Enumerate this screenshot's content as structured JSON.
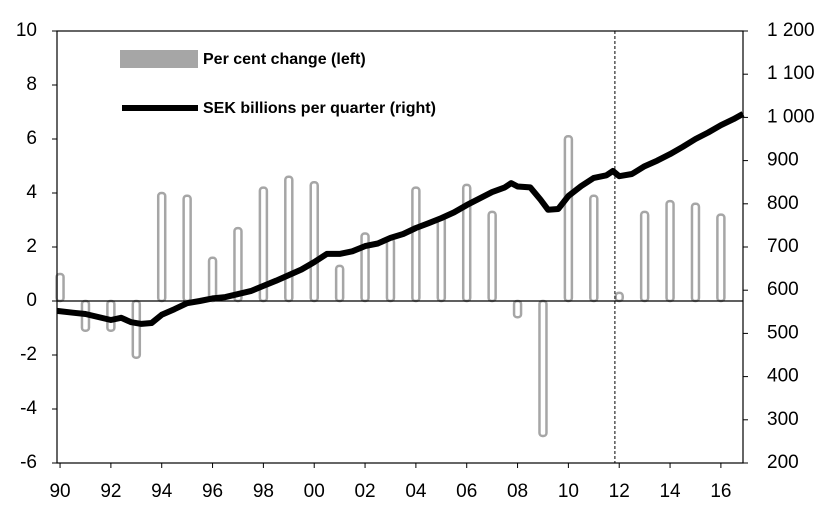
{
  "chart_data": {
    "type": "combo",
    "legend": "upper left",
    "xlim": [
      1989.88,
      2016.87
    ],
    "xticks": [
      {
        "value": 1990,
        "label": "90"
      },
      {
        "value": 1992,
        "label": "92"
      },
      {
        "value": 1994,
        "label": "94"
      },
      {
        "value": 1996,
        "label": "96"
      },
      {
        "value": 1998,
        "label": "98"
      },
      {
        "value": 2000,
        "label": "00"
      },
      {
        "value": 2002,
        "label": "02"
      },
      {
        "value": 2004,
        "label": "04"
      },
      {
        "value": 2006,
        "label": "06"
      },
      {
        "value": 2008,
        "label": "08"
      },
      {
        "value": 2010,
        "label": "10"
      },
      {
        "value": 2012,
        "label": "12"
      },
      {
        "value": 2014,
        "label": "14"
      },
      {
        "value": 2016,
        "label": "16"
      }
    ],
    "ylim": [
      -6,
      10
    ],
    "yticks": [
      -6,
      -4,
      -2,
      0,
      2,
      4,
      6,
      8,
      10
    ],
    "y2lim": [
      200,
      1200
    ],
    "y2ticks": [
      200,
      300,
      400,
      500,
      600,
      700,
      800,
      900,
      {
        "value": 1000,
        "label": "1 000"
      },
      {
        "value": 1100,
        "label": "1 100"
      },
      {
        "value": 1200,
        "label": "1 200"
      }
    ],
    "vline": 2011.83,
    "series": [
      {
        "name": "Per cent change (left)",
        "type": "bar",
        "color": "#a6a6a6",
        "x": [
          1990,
          1991,
          1992,
          1993,
          1994,
          1995,
          1996,
          1997,
          1998,
          1999,
          2000,
          2001,
          2002,
          2003,
          2004,
          2005,
          2006,
          2007,
          2008,
          2009,
          2010,
          2011,
          2012,
          2013,
          2014,
          2015,
          2016
        ],
        "values": [
          1.0,
          -1.1,
          -1.1,
          -2.1,
          4.0,
          3.9,
          1.6,
          2.7,
          4.2,
          4.6,
          4.4,
          1.3,
          2.5,
          2.3,
          4.2,
          3.1,
          4.3,
          3.3,
          -0.6,
          -5.0,
          6.1,
          3.9,
          0.3,
          3.3,
          3.7,
          3.6,
          3.2
        ]
      },
      {
        "name": "SEK billions per quarter (right)",
        "type": "line",
        "axis": "y2",
        "color": "#000000",
        "x": [
          1989.88,
          1990.5,
          1991,
          1991.5,
          1992,
          1992.4,
          1992.8,
          1993.2,
          1993.6,
          1994,
          1994.5,
          1995,
          1995.5,
          1996,
          1996.5,
          1997,
          1997.5,
          1998,
          1998.5,
          1999,
          1999.5,
          2000,
          2000.5,
          2001,
          2001.5,
          2002,
          2002.5,
          2003,
          2003.5,
          2004,
          2004.5,
          2005,
          2005.5,
          2006,
          2006.5,
          2007,
          2007.5,
          2007.75,
          2008,
          2008.5,
          2008.9,
          2009.2,
          2009.6,
          2010,
          2010.5,
          2011,
          2011.5,
          2011.75,
          2012,
          2012.5,
          2013,
          2013.5,
          2014,
          2014.5,
          2015,
          2015.5,
          2016,
          2016.5,
          2016.87
        ],
        "values": [
          552,
          548,
          545,
          538,
          531,
          536,
          526,
          522,
          524,
          543,
          556,
          570,
          575,
          581,
          584,
          591,
          598,
          610,
          622,
          635,
          648,
          665,
          684,
          684,
          690,
          702,
          708,
          721,
          730,
          744,
          755,
          767,
          780,
          797,
          812,
          827,
          838,
          848,
          840,
          838,
          810,
          786,
          788,
          818,
          841,
          860,
          866,
          876,
          864,
          869,
          887,
          900,
          915,
          932,
          950,
          965,
          982,
          996,
          1008
        ]
      }
    ]
  }
}
